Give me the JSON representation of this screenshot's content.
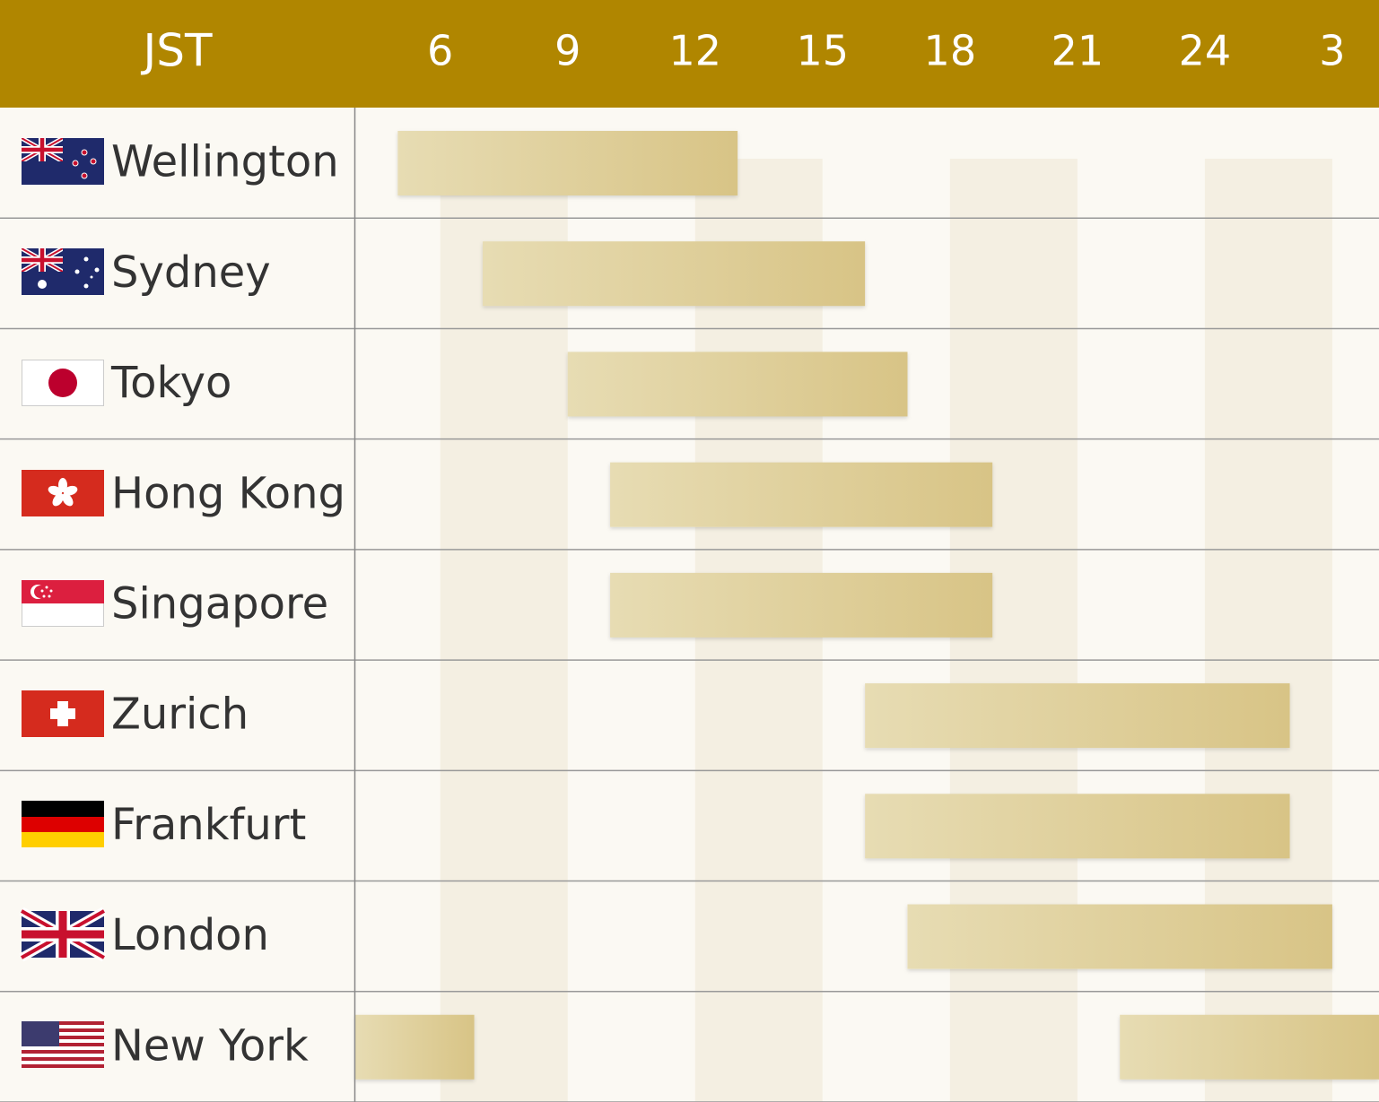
{
  "chart_data": {
    "type": "timeline",
    "axis_label": "JST",
    "xlim": [
      4,
      28.1
    ],
    "xticks": [
      6,
      9,
      12,
      15,
      18,
      21,
      24,
      {
        "value": 27,
        "label": "3"
      }
    ],
    "categories": [
      "Wellington",
      "Sydney",
      "Tokyo",
      "Hong Kong",
      "Singapore",
      "Zurich",
      "Frankfurt",
      "London",
      "New York"
    ],
    "ranges": [
      [
        [
          5,
          13
        ]
      ],
      [
        [
          7,
          16
        ]
      ],
      [
        [
          9,
          17
        ]
      ],
      [
        [
          10,
          19
        ]
      ],
      [
        [
          10,
          19
        ]
      ],
      [
        [
          16,
          26
        ]
      ],
      [
        [
          16,
          26
        ]
      ],
      [
        [
          17,
          27
        ]
      ],
      [
        [
          4,
          6.8
        ],
        [
          22,
          28.1
        ]
      ]
    ],
    "header_color": "#b08600",
    "bar_colors": [
      "#e7dcb3",
      "#d8c486"
    ],
    "band_color": "#f4efe2"
  }
}
